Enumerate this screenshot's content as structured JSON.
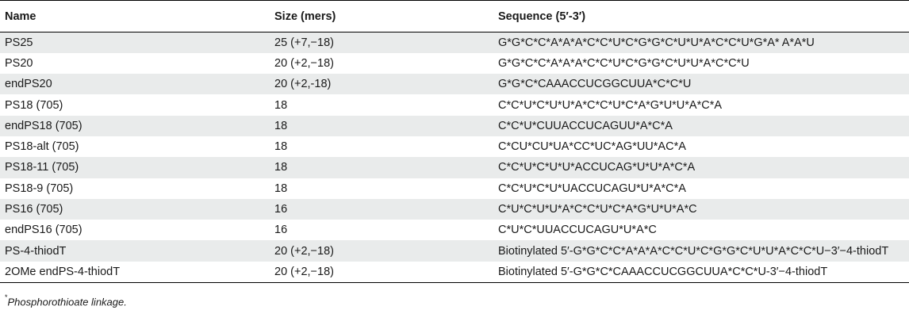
{
  "headers": [
    "Name",
    "Size (mers)",
    "Sequence (5′-3′)"
  ],
  "rows": [
    [
      "PS25",
      "25 (+7,−18)",
      "G*G*C*C*A*A*A*C*C*U*C*G*G*C*U*U*A*C*C*U*G*A* A*A*U"
    ],
    [
      "PS20",
      "20 (+2,−18)",
      "G*G*C*C*A*A*A*C*C*U*C*G*G*C*U*U*A*C*C*U"
    ],
    [
      "endPS20",
      "20 (+2,-18)",
      "G*G*C*CAAACCUCGGCUUA*C*C*U"
    ],
    [
      "PS18 (705)",
      "18",
      "C*C*U*C*U*U*A*C*C*U*C*A*G*U*U*A*C*A"
    ],
    [
      "endPS18 (705)",
      "18",
      "C*C*U*CUUACCUCAGUU*A*C*A"
    ],
    [
      "PS18-alt (705)",
      "18",
      "C*CU*CU*UA*CC*UC*AG*UU*AC*A"
    ],
    [
      "PS18-11 (705)",
      "18",
      "C*C*U*C*U*U*ACCUCAG*U*U*A*C*A"
    ],
    [
      "PS18-9 (705)",
      "18",
      "C*C*U*C*U*UACCUCAGU*U*A*C*A"
    ],
    [
      "PS16 (705)",
      "16",
      "C*U*C*U*U*A*C*C*U*C*A*G*U*U*A*C"
    ],
    [
      "endPS16 (705)",
      "16",
      "C*U*C*UUACCUCAGU*U*A*C"
    ],
    [
      "PS-4-thiodT",
      "20 (+2,−18)",
      "Biotinylated 5′-G*G*C*C*A*A*A*C*C*U*C*G*G*C*U*U*A*C*C*U−3′−4-thiodT"
    ],
    [
      "2OMe endPS-4-thiodT",
      "20 (+2,−18)",
      "Biotinylated 5′-G*G*C*CAAACCUCGGCUUA*C*C*U-3′−4-thiodT"
    ]
  ],
  "footnote": {
    "marker": "*",
    "text": "Phosphorothioate linkage."
  }
}
